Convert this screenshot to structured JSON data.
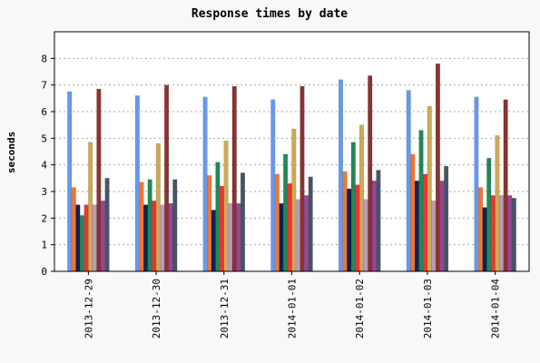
{
  "chart_data": {
    "type": "bar",
    "title": "Response times by date",
    "xlabel": "",
    "ylabel": "seconds",
    "ylim": [
      0,
      9
    ],
    "yticks": [
      0,
      1,
      2,
      3,
      4,
      5,
      6,
      7,
      8
    ],
    "grid": true,
    "legend": "none",
    "categories": [
      "2013-12-29",
      "2013-12-30",
      "2013-12-31",
      "2014-01-01",
      "2014-01-02",
      "2014-01-03",
      "2014-01-04"
    ],
    "series": [
      {
        "color": "#6699ee",
        "values": [
          6.75,
          6.6,
          6.55,
          6.45,
          7.2,
          6.8,
          6.55
        ]
      },
      {
        "color": "#ee7733",
        "values": [
          3.15,
          3.35,
          3.6,
          3.65,
          3.75,
          4.4,
          3.15
        ]
      },
      {
        "color": "#112255",
        "values": [
          2.5,
          2.5,
          2.3,
          2.55,
          3.1,
          3.4,
          2.4
        ]
      },
      {
        "color": "#228855",
        "values": [
          2.1,
          3.45,
          4.1,
          4.4,
          4.85,
          5.3,
          4.25
        ]
      },
      {
        "color": "#ee3333",
        "values": [
          2.5,
          2.65,
          3.2,
          3.3,
          3.25,
          3.65,
          2.85
        ]
      },
      {
        "color": "#ccaa55",
        "values": [
          4.85,
          4.8,
          4.9,
          5.35,
          5.5,
          6.2,
          5.1
        ]
      },
      {
        "color": "#bb99bb",
        "values": [
          2.5,
          2.5,
          2.55,
          2.7,
          2.7,
          2.65,
          2.85
        ]
      },
      {
        "color": "#883333",
        "values": [
          6.85,
          7.0,
          6.95,
          6.95,
          7.35,
          7.8,
          6.45
        ]
      },
      {
        "color": "#994499",
        "values": [
          2.65,
          2.55,
          2.55,
          2.85,
          3.4,
          3.4,
          2.85
        ]
      },
      {
        "color": "#445566",
        "values": [
          3.5,
          3.45,
          3.7,
          3.55,
          3.8,
          3.95,
          2.75
        ]
      }
    ]
  }
}
